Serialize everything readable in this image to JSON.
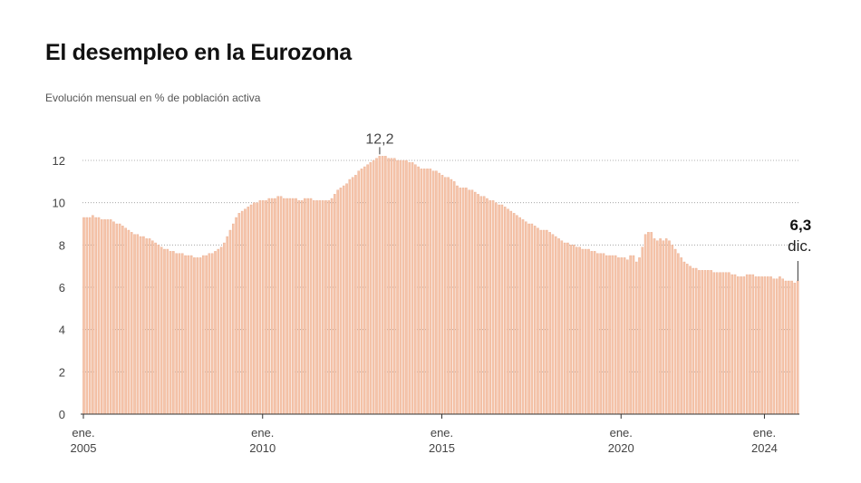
{
  "title": "El desempleo en la Eurozona",
  "subtitle": "Evolución mensual en % de población activa",
  "chart_data": {
    "type": "bar",
    "title": "El desempleo en la Eurozona",
    "subtitle": "Evolución mensual en % de población activa",
    "xlabel": "",
    "ylabel": "",
    "ylim": [
      0,
      12
    ],
    "yticks": [
      "0",
      "2",
      "4",
      "6",
      "8",
      "10",
      "12"
    ],
    "xticks": [
      {
        "month": "ene.",
        "year": "2005",
        "index": 0
      },
      {
        "month": "ene.",
        "year": "2010",
        "index": 60
      },
      {
        "month": "ene.",
        "year": "2015",
        "index": 120
      },
      {
        "month": "ene.",
        "year": "2020",
        "index": 180
      },
      {
        "month": "ene.",
        "year": "2024",
        "index": 228
      }
    ],
    "grid": true,
    "start": "2005-01",
    "end": "2024-12",
    "frequency": "monthly",
    "bar_color": "#f5c4aa",
    "annotations": [
      {
        "label": "12,2",
        "index": 99
      },
      {
        "label": "6,3",
        "sublabel": "dic.",
        "index": 239
      }
    ],
    "values": [
      9.3,
      9.3,
      9.3,
      9.4,
      9.3,
      9.3,
      9.2,
      9.2,
      9.2,
      9.2,
      9.1,
      9.0,
      9.0,
      8.9,
      8.8,
      8.7,
      8.6,
      8.5,
      8.5,
      8.4,
      8.4,
      8.3,
      8.3,
      8.2,
      8.1,
      8.0,
      7.9,
      7.8,
      7.8,
      7.7,
      7.7,
      7.6,
      7.6,
      7.6,
      7.5,
      7.5,
      7.5,
      7.4,
      7.4,
      7.4,
      7.5,
      7.5,
      7.6,
      7.6,
      7.7,
      7.8,
      7.9,
      8.1,
      8.4,
      8.7,
      9.0,
      9.3,
      9.5,
      9.6,
      9.7,
      9.8,
      9.9,
      10.0,
      10.0,
      10.1,
      10.1,
      10.1,
      10.2,
      10.2,
      10.2,
      10.3,
      10.3,
      10.2,
      10.2,
      10.2,
      10.2,
      10.2,
      10.1,
      10.1,
      10.2,
      10.2,
      10.2,
      10.1,
      10.1,
      10.1,
      10.1,
      10.1,
      10.1,
      10.2,
      10.4,
      10.6,
      10.7,
      10.8,
      10.9,
      11.1,
      11.2,
      11.3,
      11.5,
      11.6,
      11.7,
      11.8,
      11.9,
      12.0,
      12.1,
      12.2,
      12.2,
      12.2,
      12.1,
      12.1,
      12.1,
      12.0,
      12.0,
      12.0,
      12.0,
      11.9,
      11.9,
      11.8,
      11.7,
      11.6,
      11.6,
      11.6,
      11.6,
      11.5,
      11.5,
      11.4,
      11.3,
      11.2,
      11.2,
      11.1,
      11.0,
      10.8,
      10.7,
      10.7,
      10.7,
      10.6,
      10.6,
      10.5,
      10.4,
      10.3,
      10.3,
      10.2,
      10.1,
      10.1,
      10.0,
      9.9,
      9.9,
      9.8,
      9.7,
      9.6,
      9.5,
      9.4,
      9.3,
      9.2,
      9.1,
      9.0,
      9.0,
      8.9,
      8.8,
      8.7,
      8.7,
      8.7,
      8.6,
      8.5,
      8.4,
      8.3,
      8.2,
      8.1,
      8.1,
      8.0,
      8.0,
      7.9,
      7.9,
      7.8,
      7.8,
      7.8,
      7.7,
      7.7,
      7.6,
      7.6,
      7.6,
      7.5,
      7.5,
      7.5,
      7.5,
      7.4,
      7.4,
      7.4,
      7.3,
      7.5,
      7.5,
      7.2,
      7.4,
      7.9,
      8.5,
      8.6,
      8.6,
      8.3,
      8.2,
      8.3,
      8.2,
      8.3,
      8.2,
      8.0,
      7.8,
      7.6,
      7.4,
      7.2,
      7.1,
      7.0,
      6.9,
      6.9,
      6.8,
      6.8,
      6.8,
      6.8,
      6.8,
      6.7,
      6.7,
      6.7,
      6.7,
      6.7,
      6.7,
      6.6,
      6.6,
      6.5,
      6.5,
      6.5,
      6.6,
      6.6,
      6.6,
      6.5,
      6.5,
      6.5,
      6.5,
      6.5,
      6.5,
      6.4,
      6.4,
      6.5,
      6.4,
      6.3,
      6.3,
      6.3,
      6.2,
      6.3
    ]
  }
}
